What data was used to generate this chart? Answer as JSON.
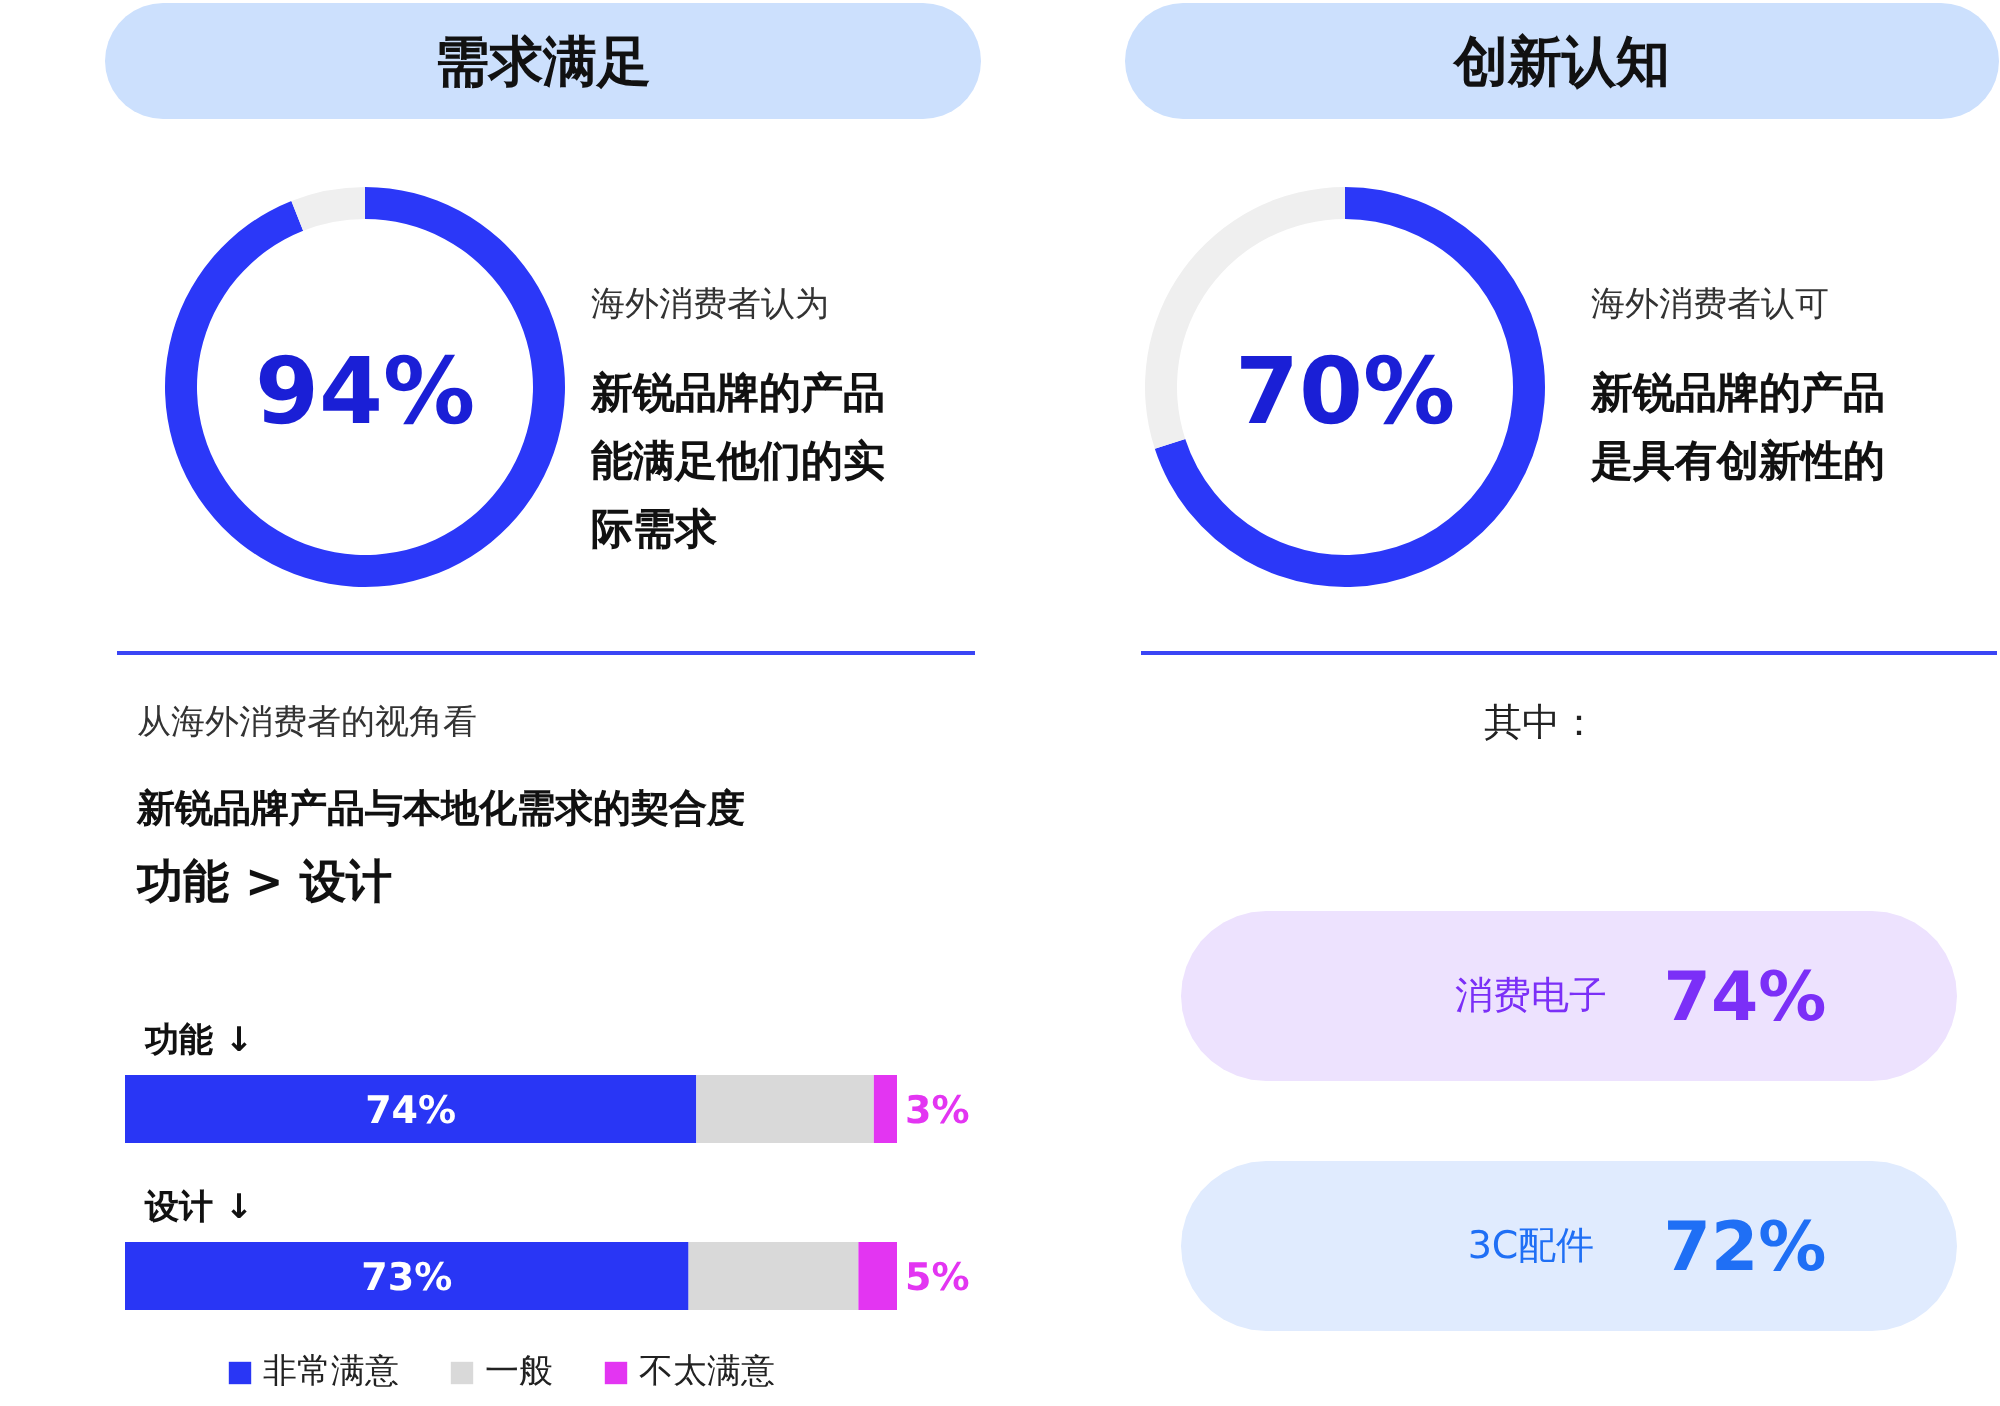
{
  "chart_data": [
    {
      "type": "donut",
      "title": "需求满足",
      "categories": [
        null,
        null
      ],
      "values": [
        94,
        6
      ],
      "colors": [
        "#2b38f8",
        "#efefef"
      ],
      "value_labels": [
        "94%",
        null
      ],
      "annotations": [
        "海外消费者认为",
        "新锐品牌的产品能满足他们的实际需求"
      ]
    },
    {
      "type": "donut",
      "title": "创新认知",
      "categories": [
        null,
        null
      ],
      "values": [
        70,
        30
      ],
      "colors": [
        "#2b38f8",
        "#efefef"
      ],
      "value_labels": [
        "70%",
        null
      ],
      "annotations": [
        "海外消费者认可",
        "新锐品牌的产品是具有创新性的"
      ]
    },
    {
      "type": "bar",
      "title": "从海外消费者的视角看",
      "subtitle": "新锐品牌产品与本地化需求的契合度",
      "annotations": [
        "功能 > 设计"
      ],
      "orientation": "horizontal",
      "stacked": true,
      "categories": [
        "功能 ↓",
        "设计 ↓"
      ],
      "series": [
        {
          "name": "非常满意",
          "color": "#2936f5",
          "values": [
            74,
            73
          ],
          "value_labels": [
            "74%",
            "73%"
          ]
        },
        {
          "name": "一般",
          "color": "#d9d9d9",
          "values": [
            23,
            22
          ]
        },
        {
          "name": "不太满意",
          "color": "#e335f2",
          "values": [
            3,
            5
          ],
          "value_labels": [
            "3%",
            "5%"
          ]
        }
      ],
      "legend": "bottom"
    },
    {
      "type": "other",
      "title": "其中：",
      "annotations": [
        "消费电子",
        "74%",
        "3C配件",
        "72%"
      ],
      "colors": [
        "#7b2ff7",
        "#1f6ff5"
      ]
    }
  ]
}
